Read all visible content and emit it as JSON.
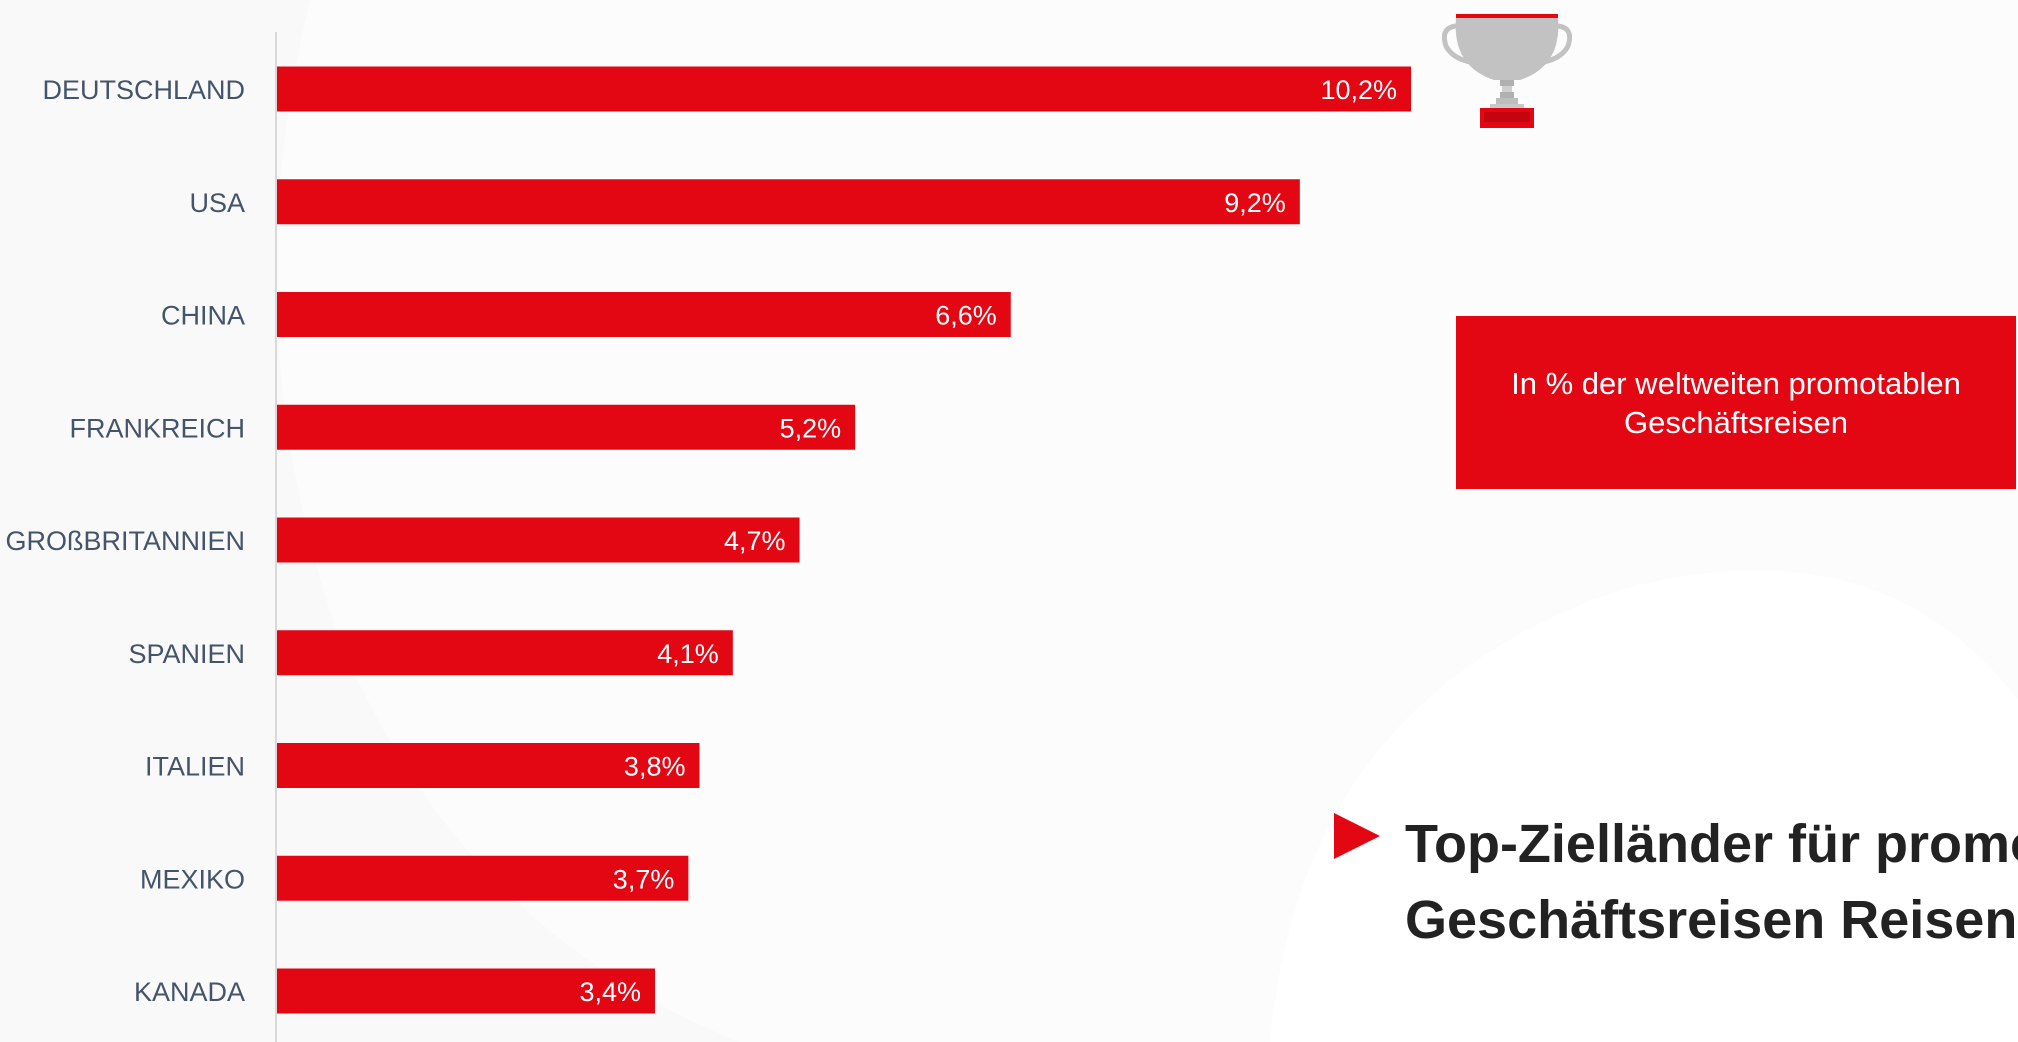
{
  "colors": {
    "bar": "#e30613",
    "background": "#f9f9f9",
    "category_label": "#44546a",
    "value_label": "#ffffff",
    "axis": "#d9d9d9",
    "headline": "#222222",
    "trophy_silver": "#c0c0c0",
    "trophy_red": "#e30613"
  },
  "chart_data": {
    "type": "bar",
    "orientation": "horizontal",
    "categories": [
      "DEUTSCHLAND",
      "USA",
      "CHINA",
      "FRANKREICH",
      "GROßBRITANNIEN",
      "SPANIEN",
      "ITALIEN",
      "MEXIKO",
      "KANADA"
    ],
    "values": [
      10.2,
      9.2,
      6.6,
      5.2,
      4.7,
      4.1,
      3.8,
      3.7,
      3.4
    ],
    "value_labels": [
      "10,2%",
      "9,2%",
      "6,6%",
      "5,2%",
      "4,7%",
      "4,1%",
      "3,8%",
      "3,7%",
      "3,4%"
    ],
    "xlim": [
      0,
      10.2
    ],
    "grid": false,
    "legend": "none",
    "title": "",
    "xlabel": "",
    "ylabel": ""
  },
  "info_box": {
    "text": "In % der weltweiten promotablen Geschäftsreisen"
  },
  "headline": {
    "line1": "Top-Zielländer für promotable",
    "line2": "Geschäftsreisen Reisen"
  },
  "icons": {
    "trophy": "trophy-icon",
    "arrow": "triangle-right-icon"
  }
}
